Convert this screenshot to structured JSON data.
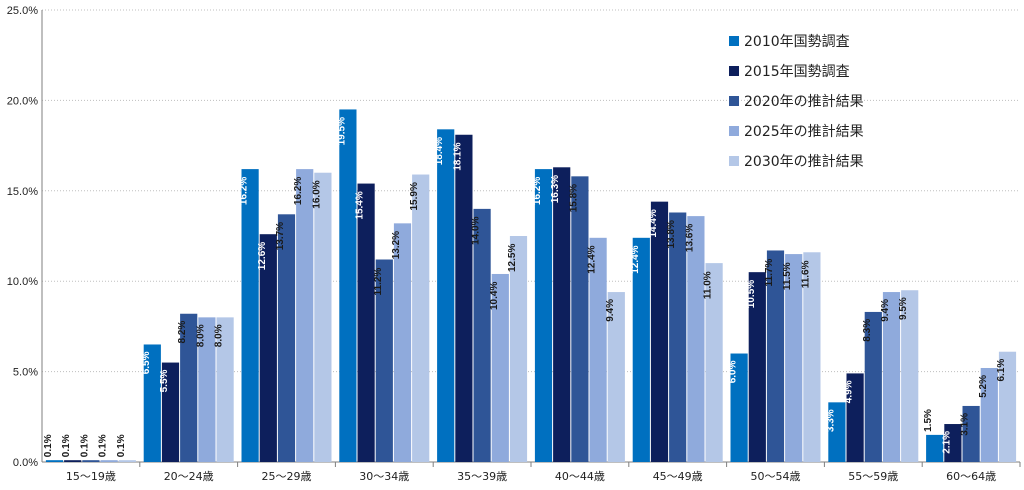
{
  "chart_data": {
    "type": "bar",
    "title": "",
    "xlabel": "",
    "ylabel": "",
    "ylim": [
      0,
      25
    ],
    "y_ticks": [
      "0.0%",
      "5.0%",
      "10.0%",
      "15.0%",
      "20.0%",
      "25.0%"
    ],
    "y_tick_values": [
      0,
      5,
      10,
      15,
      20,
      25
    ],
    "grid": "horizontal dotted",
    "legend_position": "top-right",
    "categories": [
      "15〜19歳",
      "20〜24歳",
      "25〜29歳",
      "30〜34歳",
      "35〜39歳",
      "40〜44歳",
      "45〜49歳",
      "50〜54歳",
      "55〜59歳",
      "60〜64歳"
    ],
    "series": [
      {
        "name": "2010年国勢調査",
        "color": "#0070c0",
        "label_color": "#ffffff",
        "values": [
          0.1,
          6.5,
          16.2,
          19.5,
          18.4,
          16.2,
          12.4,
          6.0,
          3.3,
          1.5
        ]
      },
      {
        "name": "2015年国勢調査",
        "color": "#0d1f5c",
        "label_color": "#ffffff",
        "values": [
          0.1,
          5.5,
          12.6,
          15.4,
          18.1,
          16.3,
          14.4,
          10.5,
          4.9,
          2.1
        ]
      },
      {
        "name": "2020年の推計結果",
        "color": "#2f5597",
        "label_color": "#1a1a1a",
        "values": [
          0.1,
          8.2,
          13.7,
          11.2,
          14.0,
          15.8,
          13.8,
          11.7,
          8.3,
          3.1
        ]
      },
      {
        "name": "2025年の推計結果",
        "color": "#8faadc",
        "label_color": "#1a1a1a",
        "values": [
          0.1,
          8.0,
          16.2,
          13.2,
          10.4,
          12.4,
          13.6,
          11.5,
          9.4,
          5.2
        ]
      },
      {
        "name": "2030年の推計結果",
        "color": "#b4c7e7",
        "label_color": "#1a1a1a",
        "values": [
          0.1,
          8.0,
          16.0,
          15.9,
          12.5,
          9.4,
          11.0,
          11.6,
          9.5,
          6.1
        ]
      }
    ]
  }
}
